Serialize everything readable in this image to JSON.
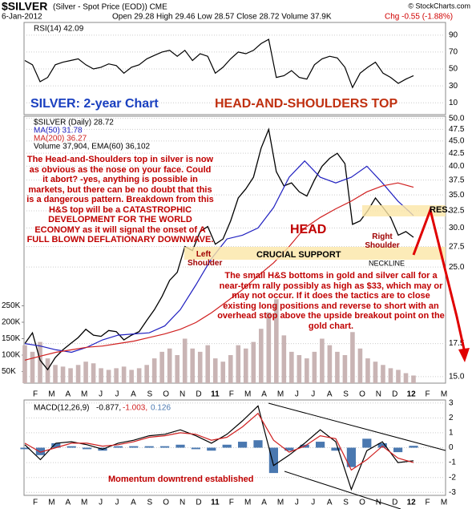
{
  "header": {
    "symbol": "$SILVER",
    "description": "(Silver - Spot Price (EOD)) CME",
    "credit": "© StockCharts.com",
    "date": "6-Jan-2012",
    "quote": "Open 29.28 High 29.46 Low 28.57 Close 28.72 Volume 37.9K",
    "change": "Chg -0.55 (-1.88%)"
  },
  "chart_data": [
    {
      "type": "line",
      "title": "RSI(14) 42.09",
      "ylim": [
        -4,
        105
      ],
      "yticks": [
        10,
        30,
        50,
        70,
        90
      ],
      "grid": true,
      "annotations": [
        "SILVER: 2-year Chart",
        "HEAD-AND-SHOULDERS TOP"
      ],
      "series": [
        {
          "name": "RSI(14)",
          "color": "#000000",
          "values": [
            60,
            55,
            35,
            40,
            55,
            58,
            60,
            62,
            55,
            50,
            52,
            56,
            54,
            45,
            52,
            55,
            62,
            66,
            70,
            72,
            65,
            72,
            60,
            68,
            65,
            45,
            52,
            62,
            70,
            68,
            72,
            80,
            85,
            40,
            42,
            48,
            40,
            38,
            55,
            62,
            65,
            63,
            52,
            28,
            45,
            52,
            58,
            45,
            40,
            33,
            38,
            42.09
          ]
        }
      ]
    },
    {
      "type": "line",
      "title": "$SILVER (Daily) 28.72",
      "log_y": true,
      "ylim": [
        14.55,
        50.5
      ],
      "yticks": [
        {
          "value": 15,
          "label": "15.0"
        },
        {
          "value": 17.5,
          "label": "17.5"
        },
        {
          "value": 25,
          "label": "25.0"
        },
        {
          "value": 27.5,
          "label": "27.5"
        },
        {
          "value": 30,
          "label": "30.0"
        },
        {
          "value": 32.5,
          "label": "32.5"
        },
        {
          "value": 35,
          "label": "35.0"
        },
        {
          "value": 37.5,
          "label": "37.5"
        },
        {
          "value": 40,
          "label": "40.0"
        },
        {
          "value": 42.5,
          "label": "42.5"
        },
        {
          "value": 45,
          "label": "45.0"
        },
        {
          "value": 47.5,
          "label": "47.5"
        },
        {
          "value": 50,
          "label": "50.0"
        }
      ],
      "y2lim": [
        14600,
        826800
      ],
      "y2ticks": [
        {
          "value": 50000,
          "label": "50K"
        },
        {
          "value": 100000,
          "label": "100K"
        },
        {
          "value": 150000,
          "label": "150K"
        },
        {
          "value": 200000,
          "label": "200K"
        },
        {
          "value": 250000,
          "label": "250K"
        }
      ],
      "grid": true,
      "xtick_labels": [
        "F",
        "M",
        "A",
        "M",
        "J",
        "J",
        "A",
        "S",
        "O",
        "N",
        "D",
        "11",
        "F",
        "M",
        "A",
        "M",
        "J",
        "J",
        "A",
        "S",
        "O",
        "N",
        "D",
        "12",
        "F",
        "M"
      ],
      "series": [
        {
          "name": "$SILVER (Daily)",
          "color": "#000000",
          "values": [
            17.5,
            18.4,
            16.2,
            15.5,
            16.4,
            17.0,
            17.5,
            18.0,
            18.7,
            18.2,
            18.1,
            18.6,
            18.5,
            17.8,
            18.2,
            18.5,
            19.5,
            20.5,
            21.8,
            23.5,
            24.4,
            27.5,
            27.0,
            29.5,
            30.2,
            27.8,
            28.5,
            31.0,
            34.5,
            36.0,
            38.0,
            43.5,
            47.5,
            39.0,
            36.5,
            37.0,
            35.5,
            34.8,
            37.5,
            40.0,
            41.5,
            42.5,
            40.5,
            30.5,
            31.0,
            32.5,
            34.5,
            33.0,
            31.5,
            29.0,
            29.5,
            28.72
          ]
        },
        {
          "name": "MA(50) 31.78",
          "color": "#2020c0",
          "values": [
            17.5,
            17.3,
            17.0,
            16.8,
            17.2,
            17.8,
            18.2,
            18.3,
            18.4,
            19.0,
            20.5,
            23,
            26,
            28.5,
            29,
            30,
            33,
            38,
            41,
            38,
            37,
            38,
            40,
            37,
            34,
            31.78
          ]
        },
        {
          "name": "MA(200) 36.27",
          "color": "#d02020",
          "values": [
            16.2,
            16.5,
            16.8,
            17.0,
            17.2,
            17.3,
            17.5,
            17.7,
            18,
            18.3,
            18.7,
            19.3,
            20.2,
            21.3,
            22.5,
            24,
            25.5,
            27.5,
            30,
            31.5,
            32.8,
            34,
            35.5,
            36.5,
            37,
            36.27
          ]
        },
        {
          "name": "Volume 37,904, EMA(60) 36,102",
          "type": "bar",
          "axis": "y2",
          "color": "#c9b4b4",
          "values": [
            130000,
            110000,
            140000,
            90000,
            70000,
            65000,
            60000,
            70000,
            80000,
            75000,
            60000,
            55000,
            60000,
            65000,
            55000,
            60000,
            70000,
            90000,
            110000,
            120000,
            100000,
            150000,
            120000,
            110000,
            130000,
            90000,
            80000,
            100000,
            130000,
            120000,
            140000,
            180000,
            230000,
            270000,
            160000,
            110000,
            100000,
            90000,
            110000,
            150000,
            130000,
            110000,
            100000,
            170000,
            120000,
            90000,
            80000,
            70000,
            60000,
            55000,
            45000,
            37904
          ]
        }
      ],
      "annotations": [
        "HEAD",
        "Left Shoulder",
        "Right Shoulder",
        "CRUCIAL SUPPORT",
        "NECKLINE",
        "RES."
      ],
      "paragraphs": [
        "The Head-and-Shoulders top in silver is now as obvious as the nose on your face. Could it abort? -yes, anything is possible in markets, but there can be no doubt that this is a dangerous pattern. Breakdown from this H&S top will be a CATASTROPHIC DEVELOPMENT FOR THE WORLD ECONOMY as it will signal the onset of A FULL BLOWN DEFLATIONARY DOWNWAVE.",
        "The small H&S bottoms in gold and silver call for a near-term rally possibly as high as $33, which may or may not occur. If it does the tactics are to close existing long positions and reverse to short with an overhead stop above the upside breakout point on the gold chart."
      ]
    },
    {
      "type": "line",
      "title": "MACD(12,26,9)",
      "ylim": [
        -3.2,
        3.2
      ],
      "yticks": [
        -3,
        -2,
        -1,
        0,
        1,
        2,
        3
      ],
      "grid": true,
      "xtick_labels": [
        "F",
        "M",
        "A",
        "M",
        "J",
        "J",
        "A",
        "S",
        "O",
        "N",
        "D",
        "11",
        "F",
        "M",
        "A",
        "M",
        "J",
        "J",
        "A",
        "S",
        "O",
        "N",
        "D",
        "12",
        "F",
        "M"
      ],
      "annotations": [
        "Momentum downtrend established"
      ],
      "series": [
        {
          "name": "-0.877,",
          "color": "#000000",
          "values": [
            0.2,
            -0.8,
            0.3,
            0.4,
            0.2,
            -0.1,
            0.3,
            0.5,
            0.8,
            0.9,
            1.2,
            0.8,
            0.3,
            0.9,
            1.8,
            2.8,
            -1.2,
            -0.5,
            0.3,
            1.2,
            0.4,
            -2.8,
            -0.2,
            0.4,
            -1.0,
            -0.877
          ]
        },
        {
          "name": "-1.003,",
          "color": "#d02020",
          "values": [
            0.3,
            -0.3,
            0,
            0.3,
            0.3,
            0.1,
            0.2,
            0.4,
            0.7,
            0.8,
            1.0,
            0.9,
            0.5,
            0.7,
            1.4,
            2.3,
            0.5,
            -0.3,
            0.1,
            0.8,
            0.6,
            -1.5,
            -0.8,
            0.1,
            -0.7,
            -1.003
          ]
        },
        {
          "name": "0.126",
          "type": "bar",
          "color": "#4a78b0",
          "values": [
            -0.1,
            -0.5,
            0.3,
            0.1,
            -0.1,
            -0.2,
            0.1,
            0.1,
            0.1,
            0.1,
            0.2,
            -0.1,
            -0.2,
            0.2,
            0.4,
            0.5,
            -1.7,
            -0.2,
            0.2,
            0.4,
            -0.2,
            -1.3,
            0.6,
            0.3,
            -0.3,
            0.126
          ]
        }
      ]
    }
  ]
}
